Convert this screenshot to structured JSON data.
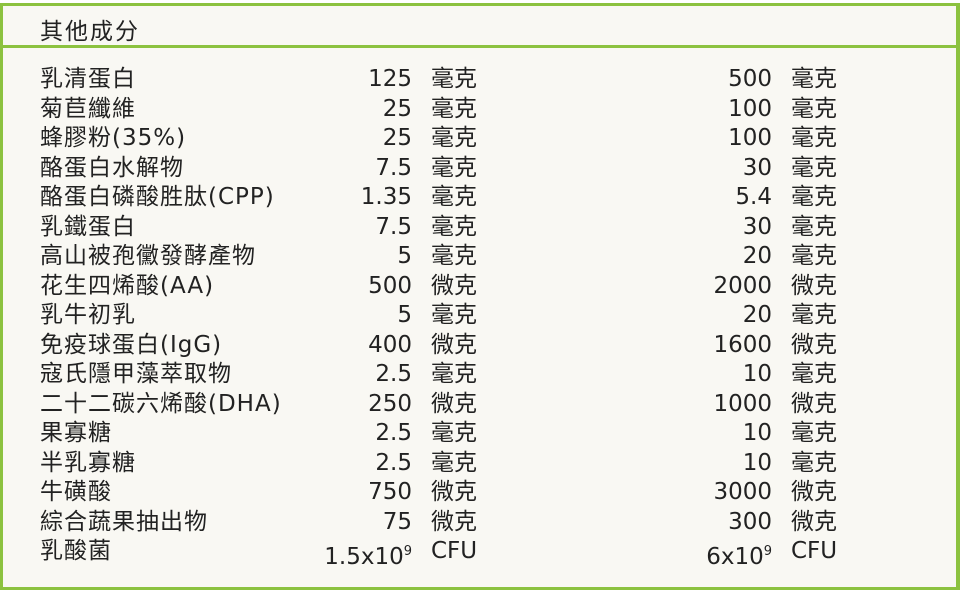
{
  "title": "其他成分",
  "rows": [
    {
      "name": "乳清蛋白",
      "v1": "125",
      "u1": "毫克",
      "v2": "500",
      "u2": "毫克"
    },
    {
      "name": "菊苣纖維",
      "v1": "25",
      "u1": "毫克",
      "v2": "100",
      "u2": "毫克"
    },
    {
      "name": "蜂膠粉(35%)",
      "v1": "25",
      "u1": "毫克",
      "v2": "100",
      "u2": "毫克"
    },
    {
      "name": "酪蛋白水解物",
      "v1": "7.5",
      "u1": "毫克",
      "v2": "30",
      "u2": "毫克"
    },
    {
      "name": "酪蛋白磷酸胜肽(CPP)",
      "v1": "1.35",
      "u1": "毫克",
      "v2": "5.4",
      "u2": "毫克"
    },
    {
      "name": "乳鐵蛋白",
      "v1": "7.5",
      "u1": "毫克",
      "v2": "30",
      "u2": "毫克"
    },
    {
      "name": "高山被孢黴發酵產物",
      "v1": "5",
      "u1": "毫克",
      "v2": "20",
      "u2": "毫克"
    },
    {
      "name": "花生四烯酸(AA)",
      "v1": "500",
      "u1": "微克",
      "v2": "2000",
      "u2": "微克"
    },
    {
      "name": "乳牛初乳",
      "v1": "5",
      "u1": "毫克",
      "v2": "20",
      "u2": "毫克"
    },
    {
      "name": "免疫球蛋白(IgG)",
      "v1": "400",
      "u1": "微克",
      "v2": "1600",
      "u2": "微克"
    },
    {
      "name": "寇氏隱甲藻萃取物",
      "v1": "2.5",
      "u1": "毫克",
      "v2": "10",
      "u2": "毫克"
    },
    {
      "name": "二十二碳六烯酸(DHA)",
      "v1": "250",
      "u1": "微克",
      "v2": "1000",
      "u2": "微克"
    },
    {
      "name": "果寡糖",
      "v1": "2.5",
      "u1": "毫克",
      "v2": "10",
      "u2": "毫克"
    },
    {
      "name": "半乳寡糖",
      "v1": "2.5",
      "u1": "毫克",
      "v2": "10",
      "u2": "毫克"
    },
    {
      "name": "牛磺酸",
      "v1": "750",
      "u1": "微克",
      "v2": "3000",
      "u2": "微克"
    },
    {
      "name": "綜合蔬果抽出物",
      "v1": "75",
      "u1": "微克",
      "v2": "300",
      "u2": "微克"
    },
    {
      "name": "乳酸菌",
      "v1": "1.5x10",
      "v1_exp": "9",
      "u1": "CFU",
      "v2": "6x10",
      "v2_exp": "9",
      "u2": "CFU"
    }
  ]
}
